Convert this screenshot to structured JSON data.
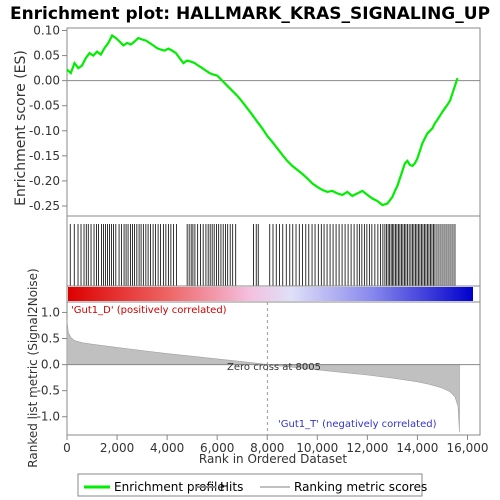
{
  "chart_data": {
    "type": "line",
    "title": "Enrichment plot: HALLMARK_KRAS_SIGNALING_UP",
    "es_panel": {
      "ylabel": "Enrichment score (ES)",
      "ylim": [
        -0.27,
        0.105
      ],
      "yticks": [
        0.1,
        0.05,
        0.0,
        -0.05,
        -0.1,
        -0.15,
        -0.2,
        -0.25
      ],
      "ytick_labels": [
        "0.10",
        "0.05",
        "0.00",
        "-0.05",
        "-0.10",
        "-0.15",
        "-0.20",
        "-0.25"
      ],
      "series": [
        {
          "name": "Enrichment profile",
          "color": "#00ee00",
          "x": [
            0,
            150,
            300,
            450,
            600,
            750,
            900,
            1050,
            1200,
            1350,
            1500,
            1650,
            1800,
            1950,
            2100,
            2250,
            2400,
            2550,
            2700,
            2850,
            3000,
            3150,
            3300,
            3450,
            3600,
            3750,
            3900,
            4050,
            4200,
            4350,
            4500,
            4650,
            4800,
            4950,
            5100,
            5250,
            5400,
            5550,
            5700,
            5850,
            6000,
            6200,
            6400,
            6600,
            6800,
            7000,
            7200,
            7400,
            7600,
            7800,
            8000,
            8200,
            8400,
            8600,
            8800,
            9000,
            9200,
            9400,
            9600,
            9800,
            10000,
            10200,
            10400,
            10600,
            10800,
            11000,
            11200,
            11400,
            11600,
            11800,
            12000,
            12200,
            12400,
            12600,
            12800,
            13000,
            13100,
            13200,
            13300,
            13400,
            13500,
            13600,
            13700,
            13800,
            13900,
            14000,
            14100,
            14200,
            14300,
            14400,
            14500,
            14600,
            14700,
            14800,
            14900,
            15000,
            15100,
            15200,
            15300,
            15400,
            15500,
            15600
          ],
          "y": [
            0.022,
            0.015,
            0.035,
            0.025,
            0.03,
            0.045,
            0.055,
            0.05,
            0.058,
            0.052,
            0.065,
            0.075,
            0.09,
            0.085,
            0.078,
            0.07,
            0.075,
            0.072,
            0.078,
            0.085,
            0.082,
            0.08,
            0.075,
            0.07,
            0.065,
            0.062,
            0.06,
            0.064,
            0.06,
            0.055,
            0.045,
            0.035,
            0.04,
            0.038,
            0.035,
            0.03,
            0.025,
            0.02,
            0.015,
            0.012,
            0.01,
            0.0,
            -0.01,
            -0.02,
            -0.03,
            -0.042,
            -0.055,
            -0.068,
            -0.082,
            -0.095,
            -0.11,
            -0.122,
            -0.135,
            -0.148,
            -0.16,
            -0.17,
            -0.178,
            -0.186,
            -0.195,
            -0.205,
            -0.212,
            -0.218,
            -0.222,
            -0.22,
            -0.225,
            -0.228,
            -0.222,
            -0.23,
            -0.225,
            -0.22,
            -0.228,
            -0.235,
            -0.24,
            -0.248,
            -0.245,
            -0.232,
            -0.22,
            -0.21,
            -0.195,
            -0.18,
            -0.165,
            -0.16,
            -0.168,
            -0.17,
            -0.165,
            -0.155,
            -0.14,
            -0.125,
            -0.115,
            -0.105,
            -0.1,
            -0.095,
            -0.085,
            -0.078,
            -0.07,
            -0.062,
            -0.055,
            -0.048,
            -0.04,
            -0.025,
            -0.01,
            0.005
          ]
        }
      ],
      "zero_line": 0.0
    },
    "hits": {
      "label": "Hits",
      "positions": [
        130,
        290,
        440,
        560,
        680,
        770,
        850,
        960,
        1080,
        1180,
        1260,
        1380,
        1460,
        1540,
        1620,
        1700,
        1780,
        1860,
        1950,
        2080,
        2180,
        2280,
        2360,
        2440,
        2540,
        2620,
        2700,
        2790,
        2880,
        2960,
        3050,
        3150,
        3240,
        3340,
        3440,
        3540,
        3640,
        3740,
        3850,
        3950,
        4050,
        4150,
        4260,
        4370,
        4800,
        4880,
        4960,
        5030,
        5110,
        5220,
        5330,
        5440,
        5550,
        5640,
        5720,
        5800,
        5880,
        5970,
        6060,
        6150,
        6240,
        6330,
        6420,
        6520,
        6620,
        6740,
        7450,
        7560,
        7640,
        8100,
        8230,
        8360,
        8490,
        8620,
        8760,
        8900,
        9020,
        9150,
        9280,
        9410,
        9540,
        9660,
        9790,
        9910,
        10040,
        10160,
        10270,
        10390,
        10510,
        10630,
        10750,
        10870,
        10990,
        11110,
        11230,
        11350,
        11470,
        11590,
        11680,
        11780,
        11880,
        11980,
        12080,
        12180,
        12300,
        12420,
        12530,
        12620,
        12700,
        12760,
        12830,
        12890,
        12950,
        13010,
        13060,
        13120,
        13180,
        13240,
        13300,
        13360,
        13420,
        13480,
        13540,
        13600,
        13670,
        13740,
        13800,
        13860,
        13920,
        13980,
        14040,
        14100,
        14160,
        14220,
        14280,
        14340,
        14400,
        14460,
        14520,
        14580,
        14640,
        14700,
        14780,
        14860,
        14940,
        15020,
        15100,
        15180,
        15260,
        15340,
        15420,
        15500
      ]
    },
    "rank_panel": {
      "ylabel": "Ranked list metric (Signal2Noise)",
      "xlabel": "Rank in Ordered Dataset",
      "xlim": [
        0,
        16500
      ],
      "ylim": [
        -1.35,
        1.2
      ],
      "xticks": [
        0,
        2000,
        4000,
        6000,
        8000,
        10000,
        12000,
        14000,
        16000
      ],
      "xtick_labels": [
        "0",
        "2,000",
        "4,000",
        "6,000",
        "8,000",
        "10,000",
        "12,000",
        "14,000",
        "16,000"
      ],
      "yticks": [
        1.0,
        0.5,
        0.0,
        -0.5,
        -1.0
      ],
      "ytick_labels": [
        "1.0",
        "0.5",
        "0.0",
        "-0.5",
        "-1.0"
      ],
      "metric_x": [
        0,
        50,
        150,
        300,
        600,
        1000,
        2000,
        3000,
        4000,
        5000,
        6000,
        7000,
        8005,
        9000,
        10000,
        11000,
        12000,
        13000,
        14000,
        14500,
        15000,
        15300,
        15500,
        15620,
        15680
      ],
      "metric_y": [
        0.85,
        0.62,
        0.52,
        0.46,
        0.42,
        0.39,
        0.33,
        0.27,
        0.21,
        0.16,
        0.11,
        0.06,
        0.0,
        -0.05,
        -0.1,
        -0.15,
        -0.2,
        -0.26,
        -0.33,
        -0.38,
        -0.45,
        -0.52,
        -0.62,
        -0.8,
        -1.3
      ],
      "zero_cross": 8005,
      "zero_cross_label": "Zero cross at 8005",
      "pos_label": "'Gut1_D' (positively correlated)",
      "neg_label": "'Gut1_T' (negatively correlated)",
      "pos_color": "#cc0000",
      "neg_color": "#0000cc",
      "fill_color": "#c0c0c0"
    },
    "legend": {
      "items": [
        {
          "label": "Enrichment profile",
          "color": "#00ee00",
          "style": "line"
        },
        {
          "label": "Hits",
          "color": "#888888",
          "style": "line"
        },
        {
          "label": "Ranking metric scores",
          "color": "#c0c0c0",
          "style": "line"
        }
      ]
    }
  }
}
